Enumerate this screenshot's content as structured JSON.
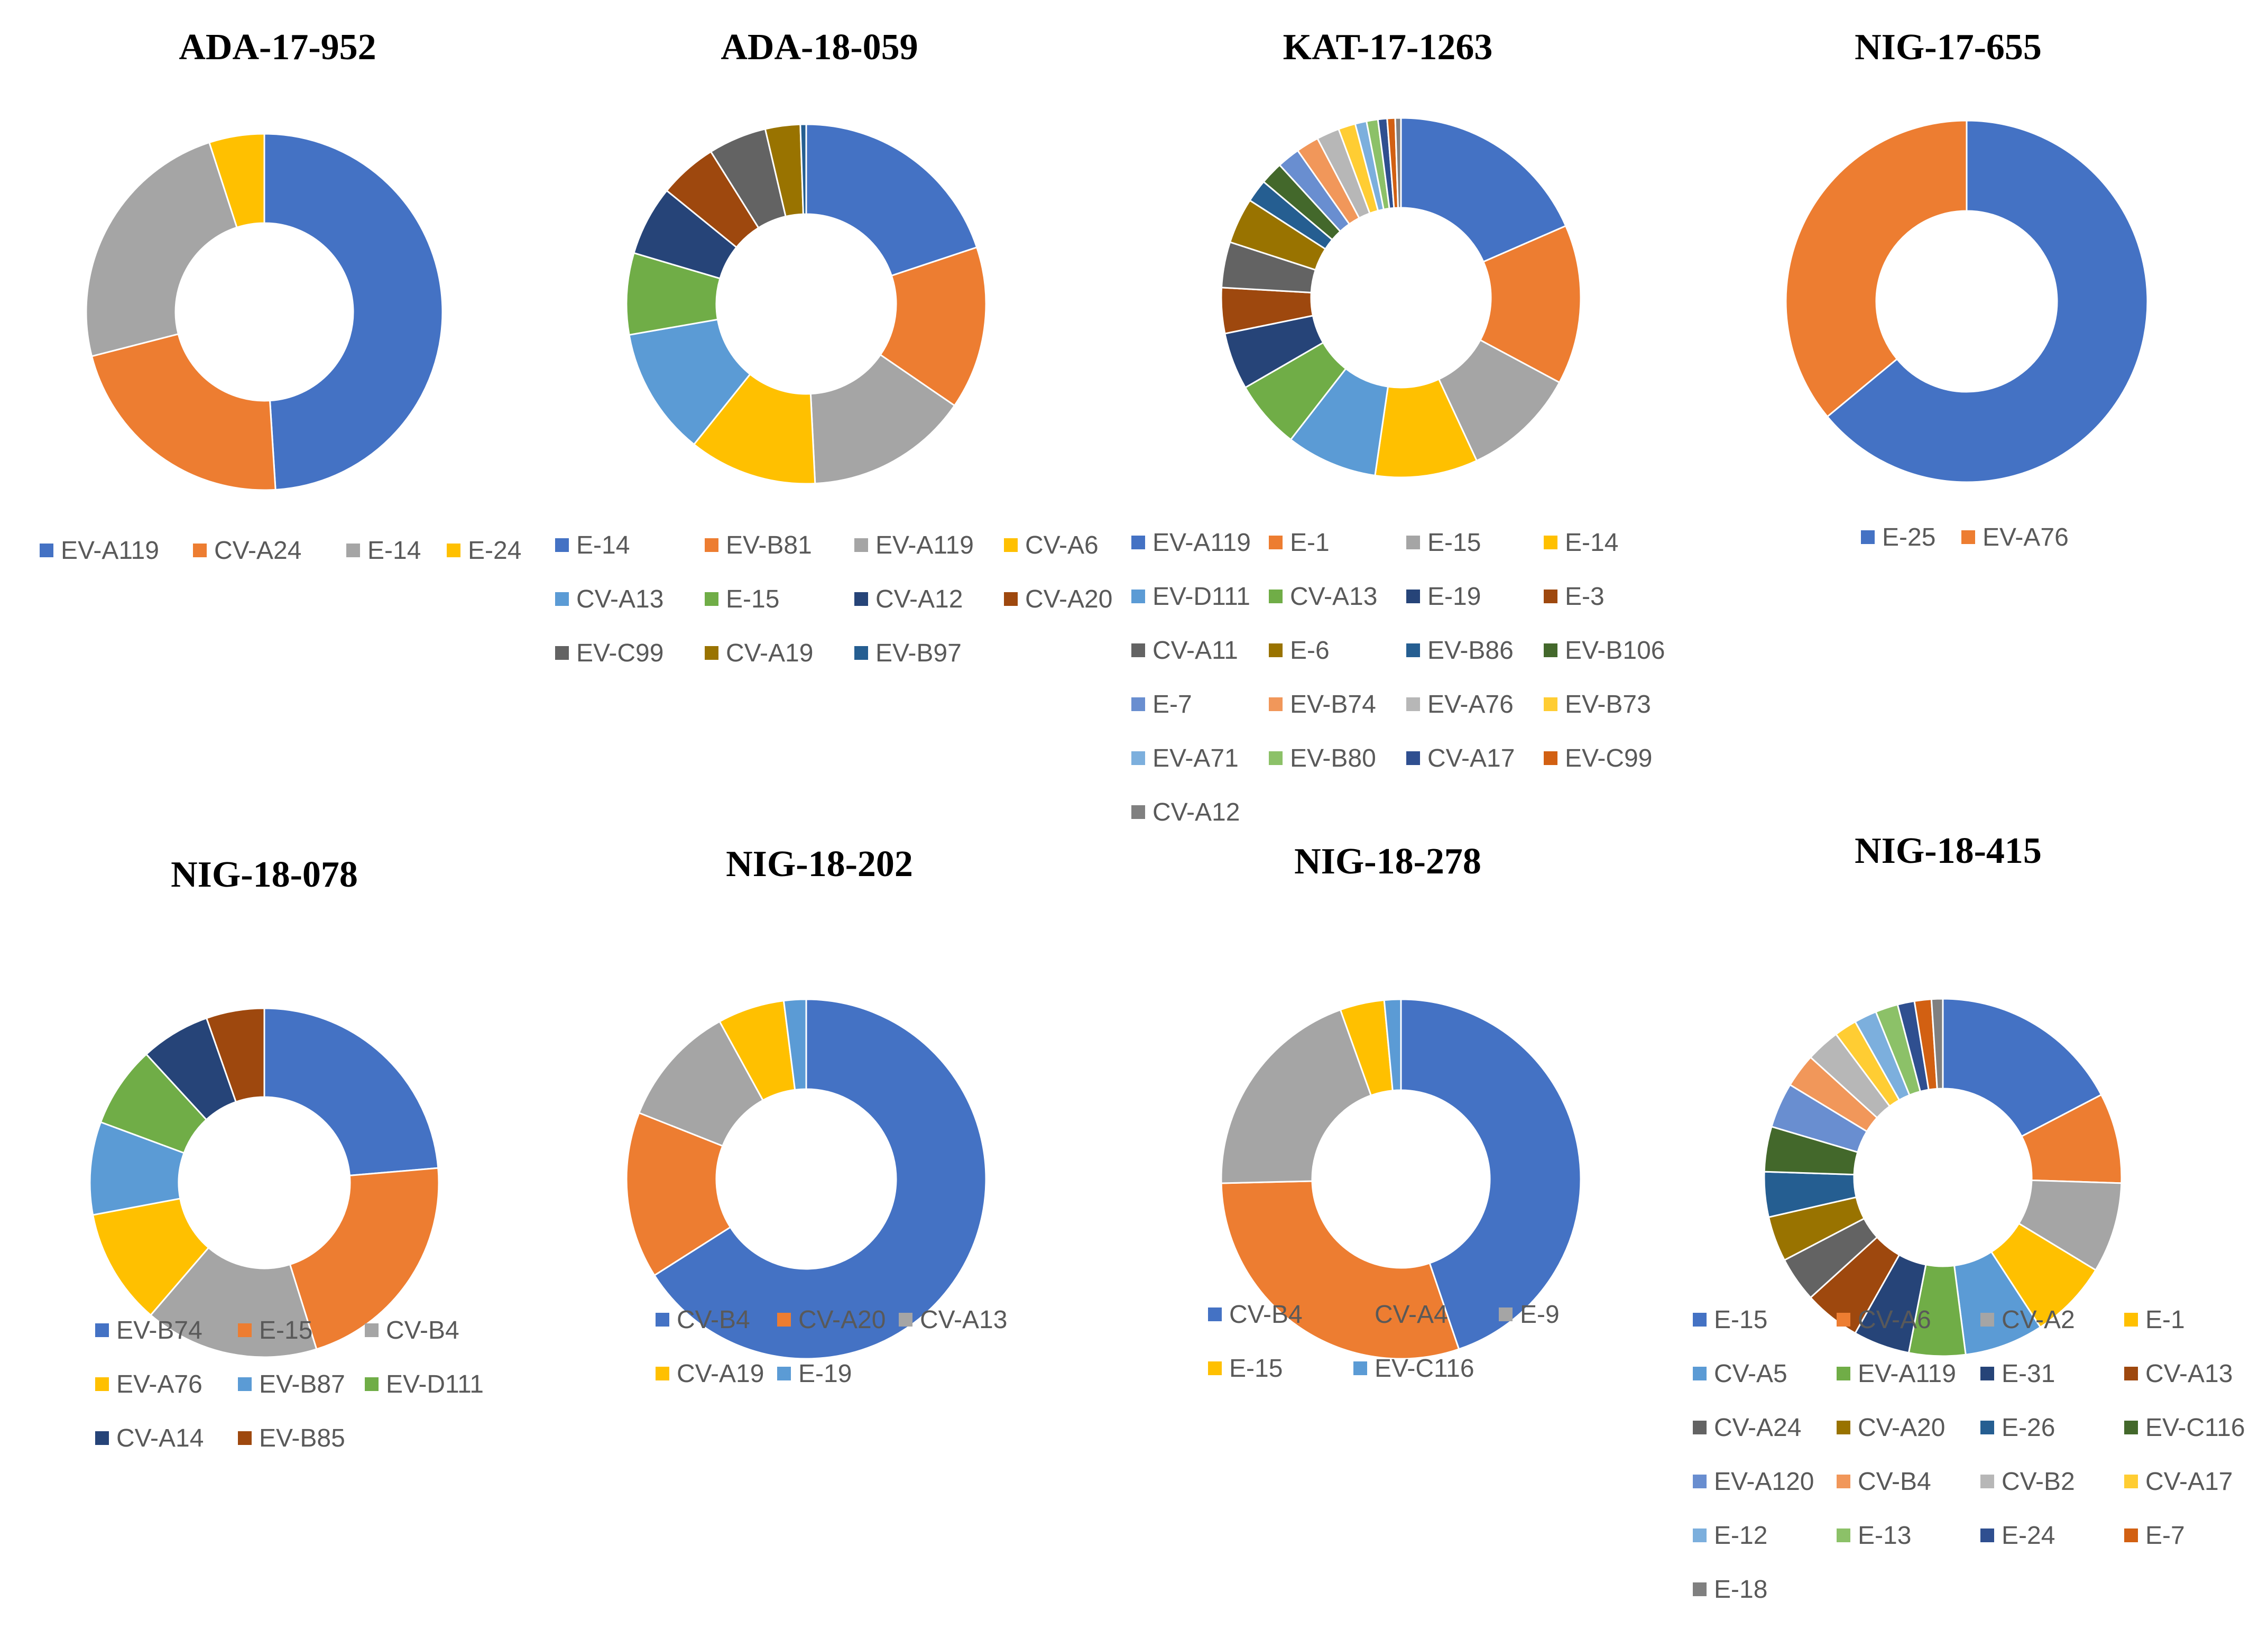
{
  "colors": {
    "palette": [
      "#4472C4",
      "#ED7D31",
      "#A5A5A5",
      "#FFC000",
      "#5B9BD5",
      "#70AD47",
      "#264478",
      "#9E480E",
      "#636363",
      "#997300",
      "#255E91",
      "#43682B",
      "#698ED0",
      "#F1975A",
      "#B7B7B7",
      "#FFCD33",
      "#7CAFDD",
      "#8CC168",
      "#2F4F90",
      "#D26012",
      "#808080"
    ]
  },
  "chart_data": [
    {
      "type": "donut",
      "title": "ADA-17-952",
      "categories": [
        "EV-A119",
        "CV-A24",
        "E-14",
        "E-24"
      ],
      "values": [
        49,
        22,
        24,
        5
      ]
    },
    {
      "type": "donut",
      "title": "ADA-18-059",
      "categories": [
        "E-14",
        "EV-B81",
        "EV-A119",
        "CV-A6",
        "CV-A13",
        "E-15",
        "CV-A12",
        "CV-A20",
        "EV-C99",
        "CV-A19",
        "EV-B97"
      ],
      "values": [
        19,
        14,
        14,
        11,
        11,
        7,
        6,
        5,
        5,
        3,
        0.5
      ]
    },
    {
      "type": "donut",
      "title": "KAT-17-1263",
      "categories": [
        "EV-A119",
        "E-1",
        "E-15",
        "E-14",
        "EV-D111",
        "CV-A13",
        "E-19",
        "E-3",
        "CV-A11",
        "E-6",
        "EV-B86",
        "EV-B106",
        "E-7",
        "EV-B74",
        "EV-A76",
        "EV-B73",
        "EV-A71",
        "EV-B80",
        "CV-A17",
        "EV-C99",
        "CV-A12"
      ],
      "values": [
        18,
        14,
        10,
        9,
        8,
        6,
        5,
        4,
        4,
        4,
        2,
        2,
        2,
        2,
        2,
        1.5,
        1,
        1,
        0.8,
        0.7,
        0.5
      ]
    },
    {
      "type": "donut",
      "title": "NIG-17-655",
      "categories": [
        "E-25",
        "EV-A76"
      ],
      "values": [
        64,
        36
      ]
    },
    {
      "type": "donut",
      "title": "NIG-18-078",
      "categories": [
        "EV-B74",
        "E-15",
        "CV-B4",
        "EV-A76",
        "EV-B87",
        "EV-D111",
        "CV-A14",
        "EV-B85"
      ],
      "values": [
        22,
        20,
        15,
        10,
        8,
        7,
        6,
        5
      ]
    },
    {
      "type": "donut",
      "title": "NIG-18-202",
      "categories": [
        "CV-B4",
        "CV-A20",
        "CV-A13",
        "CV-A19",
        "E-19"
      ],
      "values": [
        66,
        15,
        11,
        6,
        2
      ]
    },
    {
      "type": "donut",
      "title": "NIG-18-278",
      "categories": [
        "CV-B4",
        "CV-A4",
        "E-9",
        "E-15",
        "EV-C116"
      ],
      "values": [
        45,
        30,
        20,
        4,
        1.5
      ]
    },
    {
      "type": "donut",
      "title": "NIG-18-415",
      "categories": [
        "E-15",
        "CV-A6",
        "CV-A2",
        "E-1",
        "CV-A5",
        "EV-A119",
        "E-31",
        "CV-A13",
        "CV-A24",
        "CV-A20",
        "E-26",
        "EV-C116",
        "EV-A120",
        "CV-B4",
        "CV-B2",
        "CV-A17",
        "E-12",
        "E-13",
        "E-24",
        "E-7",
        "E-18"
      ],
      "values": [
        17,
        8,
        8,
        7,
        7,
        5,
        5,
        5,
        4,
        4,
        4,
        4,
        4,
        3,
        3,
        2,
        2,
        2,
        1.5,
        1.5,
        1
      ]
    }
  ]
}
